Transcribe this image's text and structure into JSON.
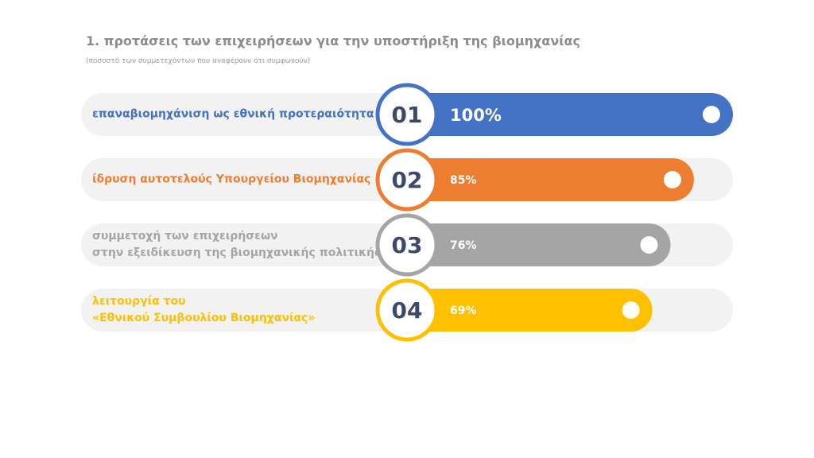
{
  "chart_data": {
    "type": "bar",
    "orientation": "horizontal",
    "title": "1. προτάσεις των επιχειρήσεων για την υποστήριξη της βιομηχανίας",
    "subtitle": "(ποσοστό των συμμετεχόντων που αναφέρουν ότι συμφωνούν)",
    "categories": [
      "επαναβιομηχάνιση ως  εθνική προτεραιότητα",
      "ίδρυση αυτοτελούς Υπουργείου Βιομηχανίας",
      "συμμετοχή των επιχειρήσεων\nστην εξειδίκευση της βιομηχανικής πολιτικής",
      "λειτουργία του\n«Εθνικού Συμβουλίου Βιομηχανίας»"
    ],
    "numbers": [
      "01",
      "02",
      "03",
      "04"
    ],
    "values": [
      100,
      85,
      76,
      69
    ],
    "value_labels": [
      "100%",
      "85%",
      "76%",
      "69%"
    ],
    "colors": [
      "#4472c4",
      "#ed7d31",
      "#a5a5a5",
      "#ffc000"
    ],
    "xlim": [
      0,
      100
    ]
  }
}
